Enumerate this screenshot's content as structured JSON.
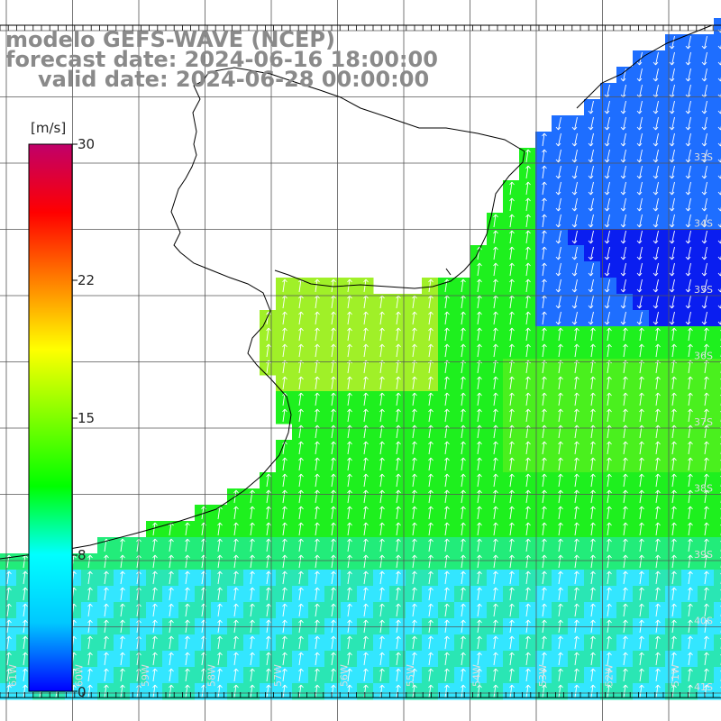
{
  "title": {
    "line1": "modelo GEFS-WAVE (NCEP)",
    "line2": "forecast date: 2024-06-16 18:00:00",
    "line3": "valid date: 2024-06-28 00:00:00"
  },
  "colorbar": {
    "unit": "[m/s]",
    "ticks": [
      "30",
      "22",
      "15",
      "8",
      "0"
    ],
    "min": 0,
    "max": 30,
    "colors": [
      "#0000ff",
      "#00c8ff",
      "#00ffff",
      "#00ff00",
      "#80ff00",
      "#ffff00",
      "#ff8000",
      "#ff0000",
      "#c0006a"
    ]
  },
  "map": {
    "lon_labels": [
      "61W",
      "60W",
      "59W",
      "58W",
      "57W",
      "56W",
      "55W",
      "54W",
      "53W",
      "52W",
      "51W"
    ],
    "lat_labels": [
      "33S",
      "34S",
      "35S",
      "36S",
      "37S",
      "38S",
      "39S",
      "40S",
      "41S"
    ],
    "field_colors": {
      "deep_blue": "#0a1ef0",
      "blue": "#1e6eff",
      "light_blue": "#29b4ff",
      "cyan": "#33e6ff",
      "green": "#1ef01e",
      "yellow_green": "#a0f028"
    }
  }
}
